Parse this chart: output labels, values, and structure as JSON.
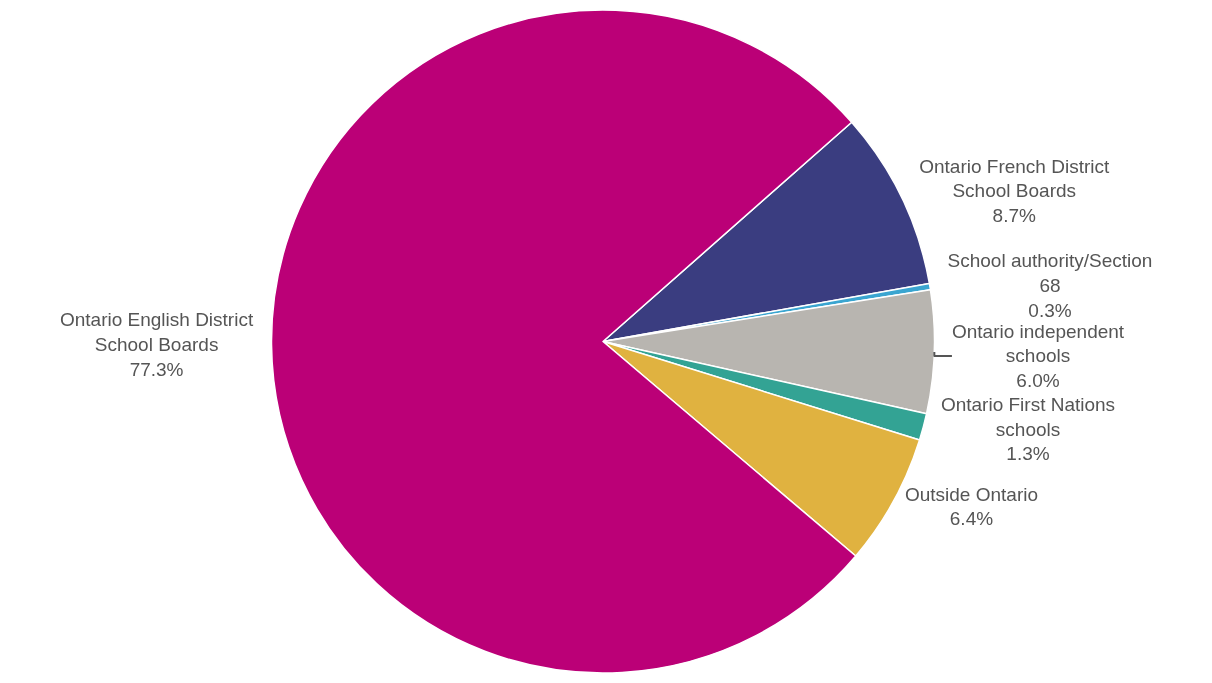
{
  "chart_data": {
    "type": "pie",
    "categories": [
      "Ontario French District School Boards",
      "School authority/Section 68",
      "Ontario independent schools",
      "Ontario First Nations schools",
      "Outside Ontario",
      "Ontario English District School Boards"
    ],
    "values": [
      8.7,
      0.3,
      6.0,
      1.3,
      6.4,
      77.3
    ],
    "value_labels": [
      "8.7%",
      "0.3%",
      "6.0%",
      "1.3%",
      "6.4%",
      "77.3%"
    ],
    "colors": [
      "#3a3d80",
      "#3aa5d0",
      "#b8b5b0",
      "#33a394",
      "#e0b240",
      "#bb0077"
    ],
    "legend": false
  }
}
